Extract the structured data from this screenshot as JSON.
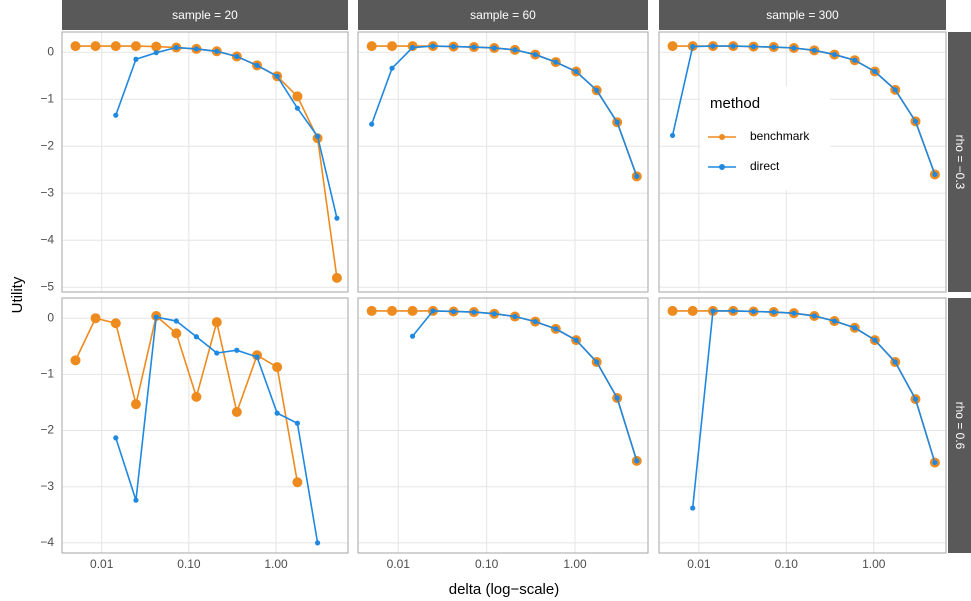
{
  "chart_data": {
    "type": "line",
    "xlabel": "delta (log−scale)",
    "ylabel": "Utility",
    "log_x": true,
    "grid": true,
    "legend_title": "method",
    "legend_position": "inside-top-right",
    "series": [
      {
        "name": "benchmark",
        "color": "#EE8B1F"
      },
      {
        "name": "direct",
        "color": "#1F88E0"
      }
    ],
    "x": [
      0.005,
      0.0085,
      0.0145,
      0.0247,
      0.0422,
      0.0718,
      0.122,
      0.209,
      0.355,
      0.606,
      1.03,
      1.76,
      3.0,
      5.0
    ],
    "xlim": [
      0.0035,
      6.7
    ],
    "xticks": [
      0.01,
      {
        "value": 0.1,
        "label": "0.10"
      },
      {
        "value": 1,
        "label": "1.00"
      }
    ],
    "columns": [
      "sample = 20",
      "sample = 60",
      "sample = 300"
    ],
    "rows": [
      {
        "label": "rho = −0.3",
        "ylim": [
          -5.1,
          0.43
        ],
        "yticks": [
          0,
          {
            "value": -1,
            "label": "−1"
          },
          {
            "value": -2,
            "label": "−2"
          },
          {
            "value": -3,
            "label": "−3"
          },
          {
            "value": -4,
            "label": "−4"
          },
          {
            "value": -5,
            "label": "−5"
          }
        ],
        "panels": [
          [
            [
              0.13,
              0.13,
              0.13,
              0.13,
              0.12,
              0.1,
              0.07,
              0.02,
              -0.09,
              -0.28,
              -0.51,
              -0.94,
              -1.83,
              -4.8
            ],
            [
              null,
              null,
              -1.34,
              -0.15,
              -0.01,
              0.1,
              0.07,
              0.02,
              -0.09,
              -0.28,
              -0.51,
              -1.19,
              -1.79,
              -3.53
            ]
          ],
          [
            [
              0.13,
              0.13,
              0.13,
              0.13,
              0.12,
              0.11,
              0.09,
              0.05,
              -0.05,
              -0.21,
              -0.41,
              -0.81,
              -1.49,
              -2.64
            ],
            [
              -1.53,
              -0.34,
              0.1,
              0.13,
              0.12,
              0.11,
              0.09,
              0.05,
              -0.05,
              -0.21,
              -0.41,
              -0.81,
              -1.49,
              -2.64
            ]
          ],
          [
            [
              0.13,
              0.13,
              0.13,
              0.13,
              0.12,
              0.11,
              0.09,
              0.04,
              -0.05,
              -0.17,
              -0.41,
              -0.8,
              -1.47,
              -2.6
            ],
            [
              -1.77,
              0.12,
              0.13,
              0.13,
              0.12,
              0.11,
              0.09,
              0.04,
              -0.05,
              -0.17,
              -0.41,
              -0.8,
              -1.47,
              -2.6
            ]
          ]
        ]
      },
      {
        "label": "rho = 0.6",
        "ylim": [
          -4.18,
          0.36
        ],
        "yticks": [
          0,
          {
            "value": -1,
            "label": "−1"
          },
          {
            "value": -2,
            "label": "−2"
          },
          {
            "value": -3,
            "label": "−3"
          },
          {
            "value": -4,
            "label": "−4"
          }
        ],
        "panels": [
          [
            [
              -0.75,
              0,
              -0.09,
              -1.53,
              0.04,
              -0.27,
              -1.4,
              -0.07,
              -1.67,
              -0.66,
              -0.87,
              -2.92,
              null,
              null
            ],
            [
              null,
              null,
              -2.13,
              -3.24,
              0.02,
              -0.05,
              -0.33,
              -0.62,
              -0.57,
              -0.69,
              -1.69,
              -1.87,
              -4.0,
              null
            ]
          ],
          [
            [
              0.13,
              0.13,
              0.13,
              0.13,
              0.12,
              0.11,
              0.08,
              0.03,
              -0.06,
              -0.19,
              -0.39,
              -0.78,
              -1.42,
              -2.54
            ],
            [
              null,
              null,
              -0.32,
              0.13,
              0.12,
              0.11,
              0.08,
              0.03,
              -0.06,
              -0.19,
              -0.39,
              -0.78,
              -1.42,
              -2.54
            ]
          ],
          [
            [
              0.13,
              0.13,
              0.13,
              0.13,
              0.12,
              0.11,
              0.09,
              0.04,
              -0.05,
              -0.17,
              -0.39,
              -0.78,
              -1.44,
              -2.57
            ],
            [
              null,
              -3.38,
              0.13,
              0.13,
              0.12,
              0.11,
              0.09,
              0.04,
              -0.05,
              -0.17,
              -0.39,
              -0.78,
              -1.44,
              -2.57
            ]
          ]
        ]
      }
    ]
  }
}
